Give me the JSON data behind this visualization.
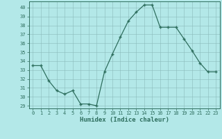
{
  "x": [
    0,
    1,
    2,
    3,
    4,
    5,
    6,
    7,
    8,
    9,
    10,
    11,
    12,
    13,
    14,
    15,
    16,
    17,
    18,
    19,
    20,
    21,
    22,
    23
  ],
  "y": [
    33.5,
    33.5,
    31.8,
    30.7,
    30.3,
    30.7,
    29.2,
    29.2,
    29.0,
    32.8,
    34.8,
    36.7,
    38.5,
    39.5,
    40.3,
    40.3,
    37.8,
    37.8,
    37.8,
    36.5,
    35.2,
    33.8,
    32.8,
    32.8
  ],
  "xlabel": "Humidex (Indice chaleur)",
  "xlim": [
    -0.5,
    23.5
  ],
  "ylim": [
    28.7,
    40.7
  ],
  "yticks": [
    29,
    30,
    31,
    32,
    33,
    34,
    35,
    36,
    37,
    38,
    39,
    40
  ],
  "xticks": [
    0,
    1,
    2,
    3,
    4,
    5,
    6,
    7,
    8,
    9,
    10,
    11,
    12,
    13,
    14,
    15,
    16,
    17,
    18,
    19,
    20,
    21,
    22,
    23
  ],
  "line_color": "#2e6e5e",
  "bg_color": "#b3e8e8",
  "grid_color": "#8ababa",
  "axis_color": "#2e6e5e",
  "xlabel_color": "#2e6e5e",
  "tick_color": "#2e6e5e"
}
